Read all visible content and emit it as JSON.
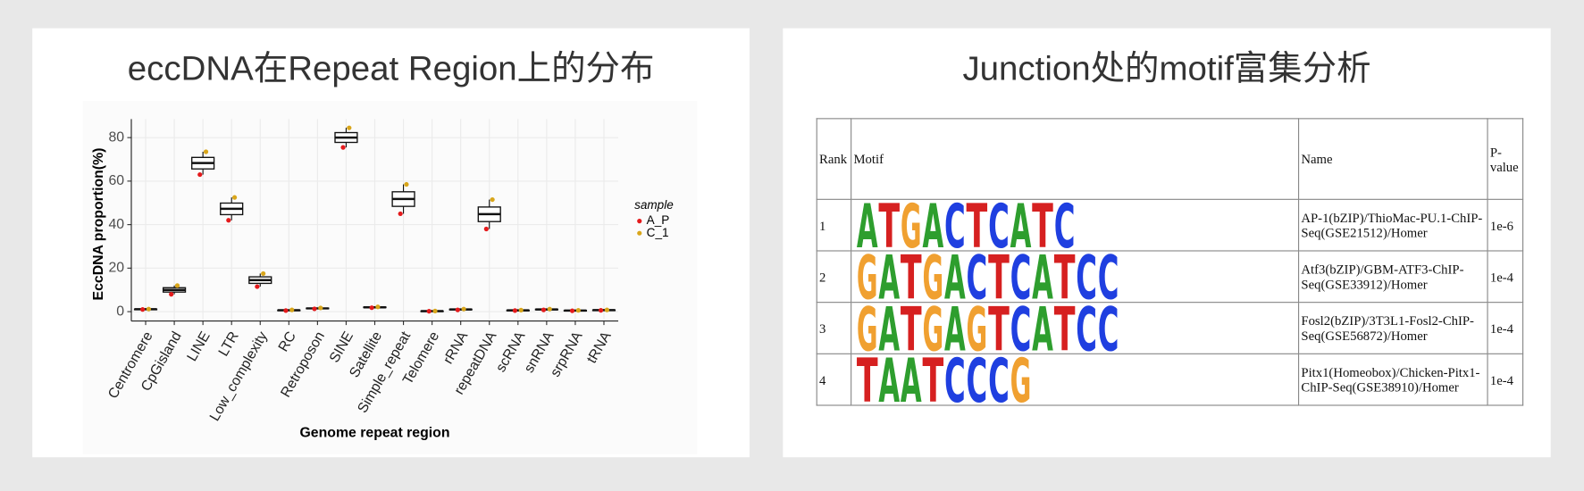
{
  "left_title": "eccDNA在Repeat Region上的分布",
  "chart_data": {
    "type": "box",
    "xlabel": "Genome repeat region",
    "ylabel": "EccDNA proportion(%)",
    "categories": [
      "Centromere",
      "CpGisland",
      "LINE",
      "LTR",
      "Low_complexity",
      "RC",
      "Retroposon",
      "SINE",
      "Satellite",
      "Simple_repeat",
      "Telomere",
      "rRNA",
      "repeatDNA",
      "scRNA",
      "snRNA",
      "srpRNA",
      "tRNA"
    ],
    "boxes": {
      "q1": [
        1.05,
        9,
        65.6,
        44.6,
        13,
        0.6,
        1.4,
        77.8,
        1.9,
        48.4,
        0.23,
        0.9,
        41.4,
        0.55,
        0.9,
        0.45,
        0.65
      ],
      "median": [
        1.1,
        10,
        68.3,
        47.3,
        14.5,
        0.65,
        1.5,
        80,
        2,
        51.8,
        0.25,
        1,
        44.8,
        0.6,
        1,
        0.5,
        0.7
      ],
      "q3": [
        1.15,
        11,
        70.9,
        49.9,
        16,
        0.7,
        1.6,
        82.3,
        2.1,
        55.1,
        0.28,
        1.1,
        48.1,
        0.65,
        1.1,
        0.55,
        0.75
      ]
    },
    "legend_title": "sample",
    "legend": "right",
    "series": [
      {
        "name": "A_P",
        "color": "#e41a1c",
        "values": [
          1,
          8,
          63,
          42,
          11.5,
          0.5,
          1.3,
          75.5,
          1.8,
          45,
          0.2,
          0.8,
          38,
          0.5,
          0.8,
          0.4,
          0.6
        ]
      },
      {
        "name": "C_1",
        "color": "#d9a61b",
        "values": [
          1.2,
          12,
          73.5,
          52.5,
          17.5,
          0.8,
          1.7,
          84.5,
          2.2,
          58.5,
          0.3,
          1.2,
          51.5,
          0.7,
          1.2,
          0.6,
          0.8
        ]
      }
    ],
    "ylim": [
      -4.3,
      88.5
    ],
    "yticks": [
      0,
      20,
      40,
      60,
      80
    ],
    "grid": true
  },
  "right_title": "Junction处的motif富集分析",
  "table": {
    "header": [
      "Rank",
      "Motif",
      "Name",
      "P-value"
    ],
    "rows": [
      {
        "rank": 1,
        "logo": [
          "A",
          "T",
          "G",
          "A",
          "C",
          "T",
          "C",
          "A",
          "T",
          "C"
        ],
        "name": "AP-1(bZIP)/ThioMac-PU.1-ChIP-Seq(GSE21512)/Homer",
        "pvalue": "1e-6"
      },
      {
        "rank": 2,
        "logo": [
          "G",
          "A",
          "T",
          "G",
          "A",
          "C",
          "T",
          "C",
          "A",
          "T",
          "C",
          "C"
        ],
        "name": "Atf3(bZIP)/GBM-ATF3-ChIP-Seq(GSE33912)/Homer",
        "pvalue": "1e-4"
      },
      {
        "rank": 3,
        "logo": [
          "G",
          "A",
          "T",
          "G",
          "A",
          "G",
          "T",
          "C",
          "A",
          "T",
          "C",
          "C"
        ],
        "name": "Fosl2(bZIP)/3T3L1-Fosl2-ChIP-Seq(GSE56872)/Homer",
        "pvalue": "1e-4"
      },
      {
        "rank": 4,
        "logo": [
          "T",
          "A",
          "A",
          "T",
          "C",
          "C",
          "C",
          "G"
        ],
        "name": "Pitx1(Homeobox)/Chicken-Pitx1-ChIP-Seq(GSE38910)/Homer",
        "pvalue": "1e-4"
      }
    ]
  }
}
